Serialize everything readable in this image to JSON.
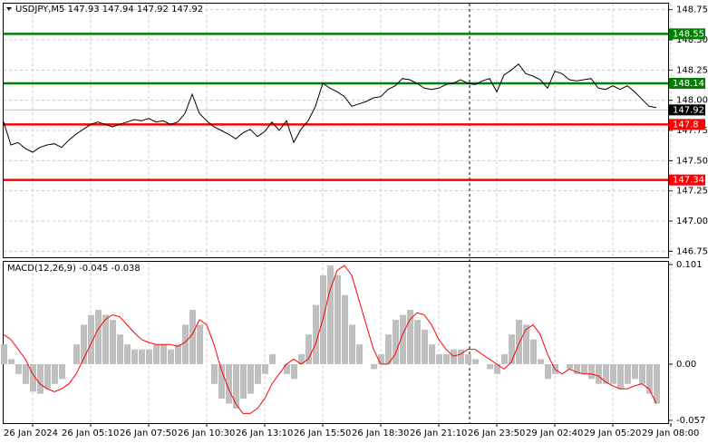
{
  "chart_data": [
    {
      "type": "line",
      "title": "USDJPY,M5  147.93 147.94 147.92 147.92",
      "color": "#000000",
      "values": [
        147.82,
        147.63,
        147.65,
        147.6,
        147.57,
        147.61,
        147.63,
        147.64,
        147.61,
        147.67,
        147.72,
        147.76,
        147.8,
        147.82,
        147.8,
        147.78,
        147.8,
        147.82,
        147.84,
        147.83,
        147.85,
        147.82,
        147.83,
        147.8,
        147.82,
        147.89,
        148.05,
        147.89,
        147.83,
        147.78,
        147.75,
        147.72,
        147.68,
        147.73,
        147.76,
        147.7,
        147.74,
        147.82,
        147.75,
        147.83,
        147.65,
        147.76,
        147.83,
        147.95,
        148.14,
        148.1,
        148.07,
        148.03,
        147.95,
        147.97,
        147.99,
        148.02,
        148.03,
        148.09,
        148.12,
        148.18,
        148.17,
        148.14,
        148.1,
        148.09,
        148.1,
        148.13,
        148.14,
        148.17,
        148.14,
        148.13,
        148.16,
        148.18,
        148.07,
        148.21,
        148.25,
        148.3,
        148.22,
        148.2,
        148.17,
        148.1,
        148.24,
        148.22,
        148.17,
        148.16,
        148.17,
        148.18,
        148.1,
        148.09,
        148.12,
        148.09,
        148.12,
        148.07,
        148.01,
        147.95,
        147.94
      ],
      "levels": [
        {
          "value": 148.55,
          "color": "#008000"
        },
        {
          "value": 148.14,
          "color": "#008000"
        },
        {
          "value": 147.8,
          "color": "#ff0000"
        },
        {
          "value": 147.34,
          "color": "#ff0000"
        }
      ],
      "last": 147.92,
      "ylim": [
        146.7,
        148.8
      ],
      "yticks": [
        148.75,
        {
          "value": 148.5,
          "label": "148.50"
        },
        148.25,
        {
          "value": 148,
          "label": "148.00"
        },
        147.75,
        {
          "value": 147.5,
          "label": "147.50"
        },
        147.25,
        {
          "value": 147,
          "label": "147.00"
        },
        146.75
      ],
      "grid": true
    },
    {
      "type": "macd",
      "title": "MACD(12,26,9) -0.045 -0.038",
      "series": [
        {
          "color": "#c0c0c0",
          "values": [
            0.02,
            0.005,
            -0.01,
            -0.02,
            -0.028,
            -0.03,
            -0.025,
            -0.02,
            -0.015,
            0,
            0.02,
            0.04,
            0.05,
            0.055,
            0.05,
            0.045,
            0.03,
            0.02,
            0.015,
            0.015,
            0.015,
            0.02,
            0.02,
            0.015,
            0.02,
            0.04,
            0.055,
            0.04,
            0,
            -0.02,
            -0.035,
            -0.04,
            -0.045,
            -0.035,
            -0.03,
            -0.02,
            -0.01,
            0.01,
            0,
            -0.01,
            -0.015,
            0.01,
            0.03,
            0.06,
            0.09,
            0.1,
            0.09,
            0.07,
            0.04,
            0.02,
            0,
            -0.005,
            0.01,
            0.03,
            0.045,
            0.05,
            0.055,
            0.045,
            0.035,
            0.02,
            0.01,
            0.01,
            0.015,
            0.015,
            0.01,
            0.005,
            0,
            -0.005,
            -0.01,
            0.01,
            0.03,
            0.045,
            0.04,
            0.025,
            0.005,
            -0.015,
            -0.01,
            0,
            -0.005,
            -0.01,
            -0.01,
            -0.015,
            -0.02,
            -0.02,
            -0.02,
            -0.025,
            -0.02,
            -0.015,
            -0.02,
            -0.03,
            -0.04
          ]
        },
        {
          "color": "#ff0000",
          "values": [
            0.03,
            0.025,
            0.015,
            0.005,
            -0.01,
            -0.02,
            -0.025,
            -0.028,
            -0.025,
            -0.02,
            -0.01,
            0.005,
            0.02,
            0.035,
            0.045,
            0.05,
            0.048,
            0.04,
            0.032,
            0.025,
            0.022,
            0.02,
            0.02,
            0.02,
            0.018,
            0.022,
            0.03,
            0.045,
            0.04,
            0.02,
            -0.005,
            -0.025,
            -0.04,
            -0.05,
            -0.05,
            -0.045,
            -0.035,
            -0.02,
            -0.01,
            0,
            0.005,
            0,
            0.005,
            0.02,
            0.045,
            0.075,
            0.095,
            0.1,
            0.09,
            0.065,
            0.04,
            0.015,
            0,
            0,
            0.01,
            0.03,
            0.045,
            0.052,
            0.05,
            0.04,
            0.025,
            0.015,
            0.008,
            0.01,
            0.015,
            0.015,
            0.01,
            0.005,
            0,
            -0.005,
            0.002,
            0.02,
            0.035,
            0.04,
            0.03,
            0.01,
            -0.005,
            -0.01,
            -0.005,
            -0.008,
            -0.01,
            -0.01,
            -0.012,
            -0.018,
            -0.022,
            -0.025,
            -0.025,
            -0.022,
            -0.02,
            -0.025,
            -0.04
          ]
        }
      ],
      "ylim": [
        -0.057,
        0.101
      ],
      "yticks": [
        0.101,
        {
          "value": 0,
          "label": "0.00"
        },
        -0.057
      ],
      "x_labels": [
        "26 Jan 2024",
        "26 Jan 05:10",
        "26 Jan 07:50",
        "26 Jan 10:30",
        "26 Jan 13:10",
        "26 Jan 15:50",
        "26 Jan 18:30",
        "26 Jan 21:10",
        "26 Jan 23:50",
        "29 Jan 02:40",
        "29 Jan 05:20",
        "29 Jan 08:00"
      ]
    }
  ]
}
